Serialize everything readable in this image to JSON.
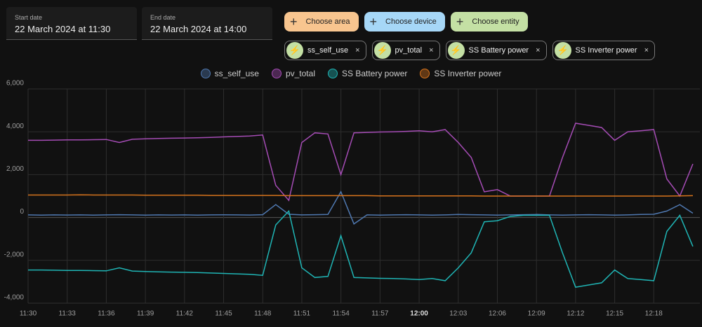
{
  "start_date": {
    "label": "Start date",
    "value": "22 March 2024 at 11:30"
  },
  "end_date": {
    "label": "End date",
    "value": "22 March 2024 at 14:00"
  },
  "pickers": [
    {
      "label": "Choose area",
      "color": "#f8c58f"
    },
    {
      "label": "Choose device",
      "color": "#a6d7f7"
    },
    {
      "label": "Choose entity",
      "color": "#c4e0a4"
    }
  ],
  "chips": [
    "ss_self_use",
    "pv_total",
    "SS Battery power",
    "SS Inverter power"
  ],
  "chart_data": {
    "type": "line",
    "x": [
      "11:30",
      "11:31",
      "11:32",
      "11:33",
      "11:34",
      "11:35",
      "11:36",
      "11:37",
      "11:38",
      "11:39",
      "11:40",
      "11:41",
      "11:42",
      "11:43",
      "11:44",
      "11:45",
      "11:46",
      "11:47",
      "11:48",
      "11:49",
      "11:50",
      "11:51",
      "11:52",
      "11:53",
      "11:54",
      "11:55",
      "11:56",
      "11:57",
      "11:58",
      "11:59",
      "12:00",
      "12:01",
      "12:02",
      "12:03",
      "12:04",
      "12:05",
      "12:06",
      "12:07",
      "12:08",
      "12:09",
      "12:10",
      "12:11",
      "12:12",
      "12:13",
      "12:14",
      "12:15",
      "12:16",
      "12:17",
      "12:18",
      "12:19",
      "12:20",
      "12:21"
    ],
    "xlim": [
      "11:30",
      "12:21"
    ],
    "xticks": [
      "11:30",
      "11:33",
      "11:36",
      "11:39",
      "11:42",
      "11:45",
      "11:48",
      "11:51",
      "11:54",
      "11:57",
      "12:00",
      "12:03",
      "12:06",
      "12:09",
      "12:12",
      "12:15",
      "12:18"
    ],
    "ylim": [
      -4000,
      6000
    ],
    "yticks": [
      {
        "value": -4000,
        "label": "-4,000"
      },
      {
        "value": -2000,
        "label": "-2,000"
      },
      0,
      {
        "value": 2000,
        "label": "2,000"
      },
      {
        "value": 4000,
        "label": "4,000"
      },
      {
        "value": 6000,
        "label": "6,000"
      }
    ],
    "grid": true,
    "series": [
      {
        "name": "ss_self_use",
        "color": "#4f78b0",
        "values": [
          120,
          110,
          120,
          115,
          120,
          110,
          120,
          130,
          120,
          110,
          120,
          115,
          120,
          110,
          120,
          125,
          120,
          115,
          130,
          600,
          150,
          120,
          130,
          140,
          1200,
          -300,
          120,
          110,
          120,
          130,
          120,
          110,
          120,
          140,
          130,
          120,
          110,
          120,
          130,
          140,
          120,
          110,
          120,
          130,
          120,
          110,
          120,
          140,
          150,
          300,
          600,
          200
        ]
      },
      {
        "name": "pv_total",
        "color": "#a54cb5",
        "values": [
          3600,
          3600,
          3610,
          3620,
          3620,
          3630,
          3640,
          3500,
          3650,
          3670,
          3690,
          3700,
          3710,
          3720,
          3740,
          3760,
          3780,
          3800,
          3850,
          1500,
          800,
          3500,
          3950,
          3900,
          2000,
          3950,
          3970,
          3990,
          4000,
          4020,
          4050,
          4000,
          4100,
          3500,
          2800,
          1200,
          1300,
          1000,
          1000,
          1000,
          1000,
          2800,
          4400,
          4300,
          4200,
          3600,
          4000,
          4050,
          4100,
          1800,
          1000,
          2500
        ]
      },
      {
        "name": "SS Battery power",
        "color": "#1fb5b5",
        "values": [
          -2450,
          -2450,
          -2460,
          -2470,
          -2470,
          -2480,
          -2490,
          -2350,
          -2500,
          -2520,
          -2540,
          -2550,
          -2560,
          -2570,
          -2590,
          -2610,
          -2630,
          -2650,
          -2700,
          -350,
          300,
          -2350,
          -2800,
          -2750,
          -850,
          -2800,
          -2820,
          -2840,
          -2850,
          -2870,
          -2900,
          -2850,
          -2950,
          -2350,
          -1650,
          -200,
          -150,
          50,
          100,
          100,
          100,
          -1650,
          -3250,
          -3150,
          -3050,
          -2450,
          -2850,
          -2900,
          -2950,
          -650,
          100,
          -1350
        ]
      },
      {
        "name": "SS Inverter power",
        "color": "#d8741c",
        "values": [
          1050,
          1050,
          1050,
          1050,
          1060,
          1050,
          1050,
          1050,
          1050,
          1040,
          1040,
          1040,
          1040,
          1040,
          1030,
          1030,
          1030,
          1030,
          1030,
          1030,
          1020,
          1020,
          1020,
          1020,
          1020,
          1020,
          1020,
          1010,
          1010,
          1010,
          1010,
          1010,
          1010,
          1010,
          1010,
          1000,
          1000,
          1000,
          1000,
          1000,
          1000,
          1000,
          1000,
          1000,
          1000,
          1000,
          1000,
          1000,
          1000,
          1000,
          1010,
          1020
        ]
      }
    ]
  }
}
